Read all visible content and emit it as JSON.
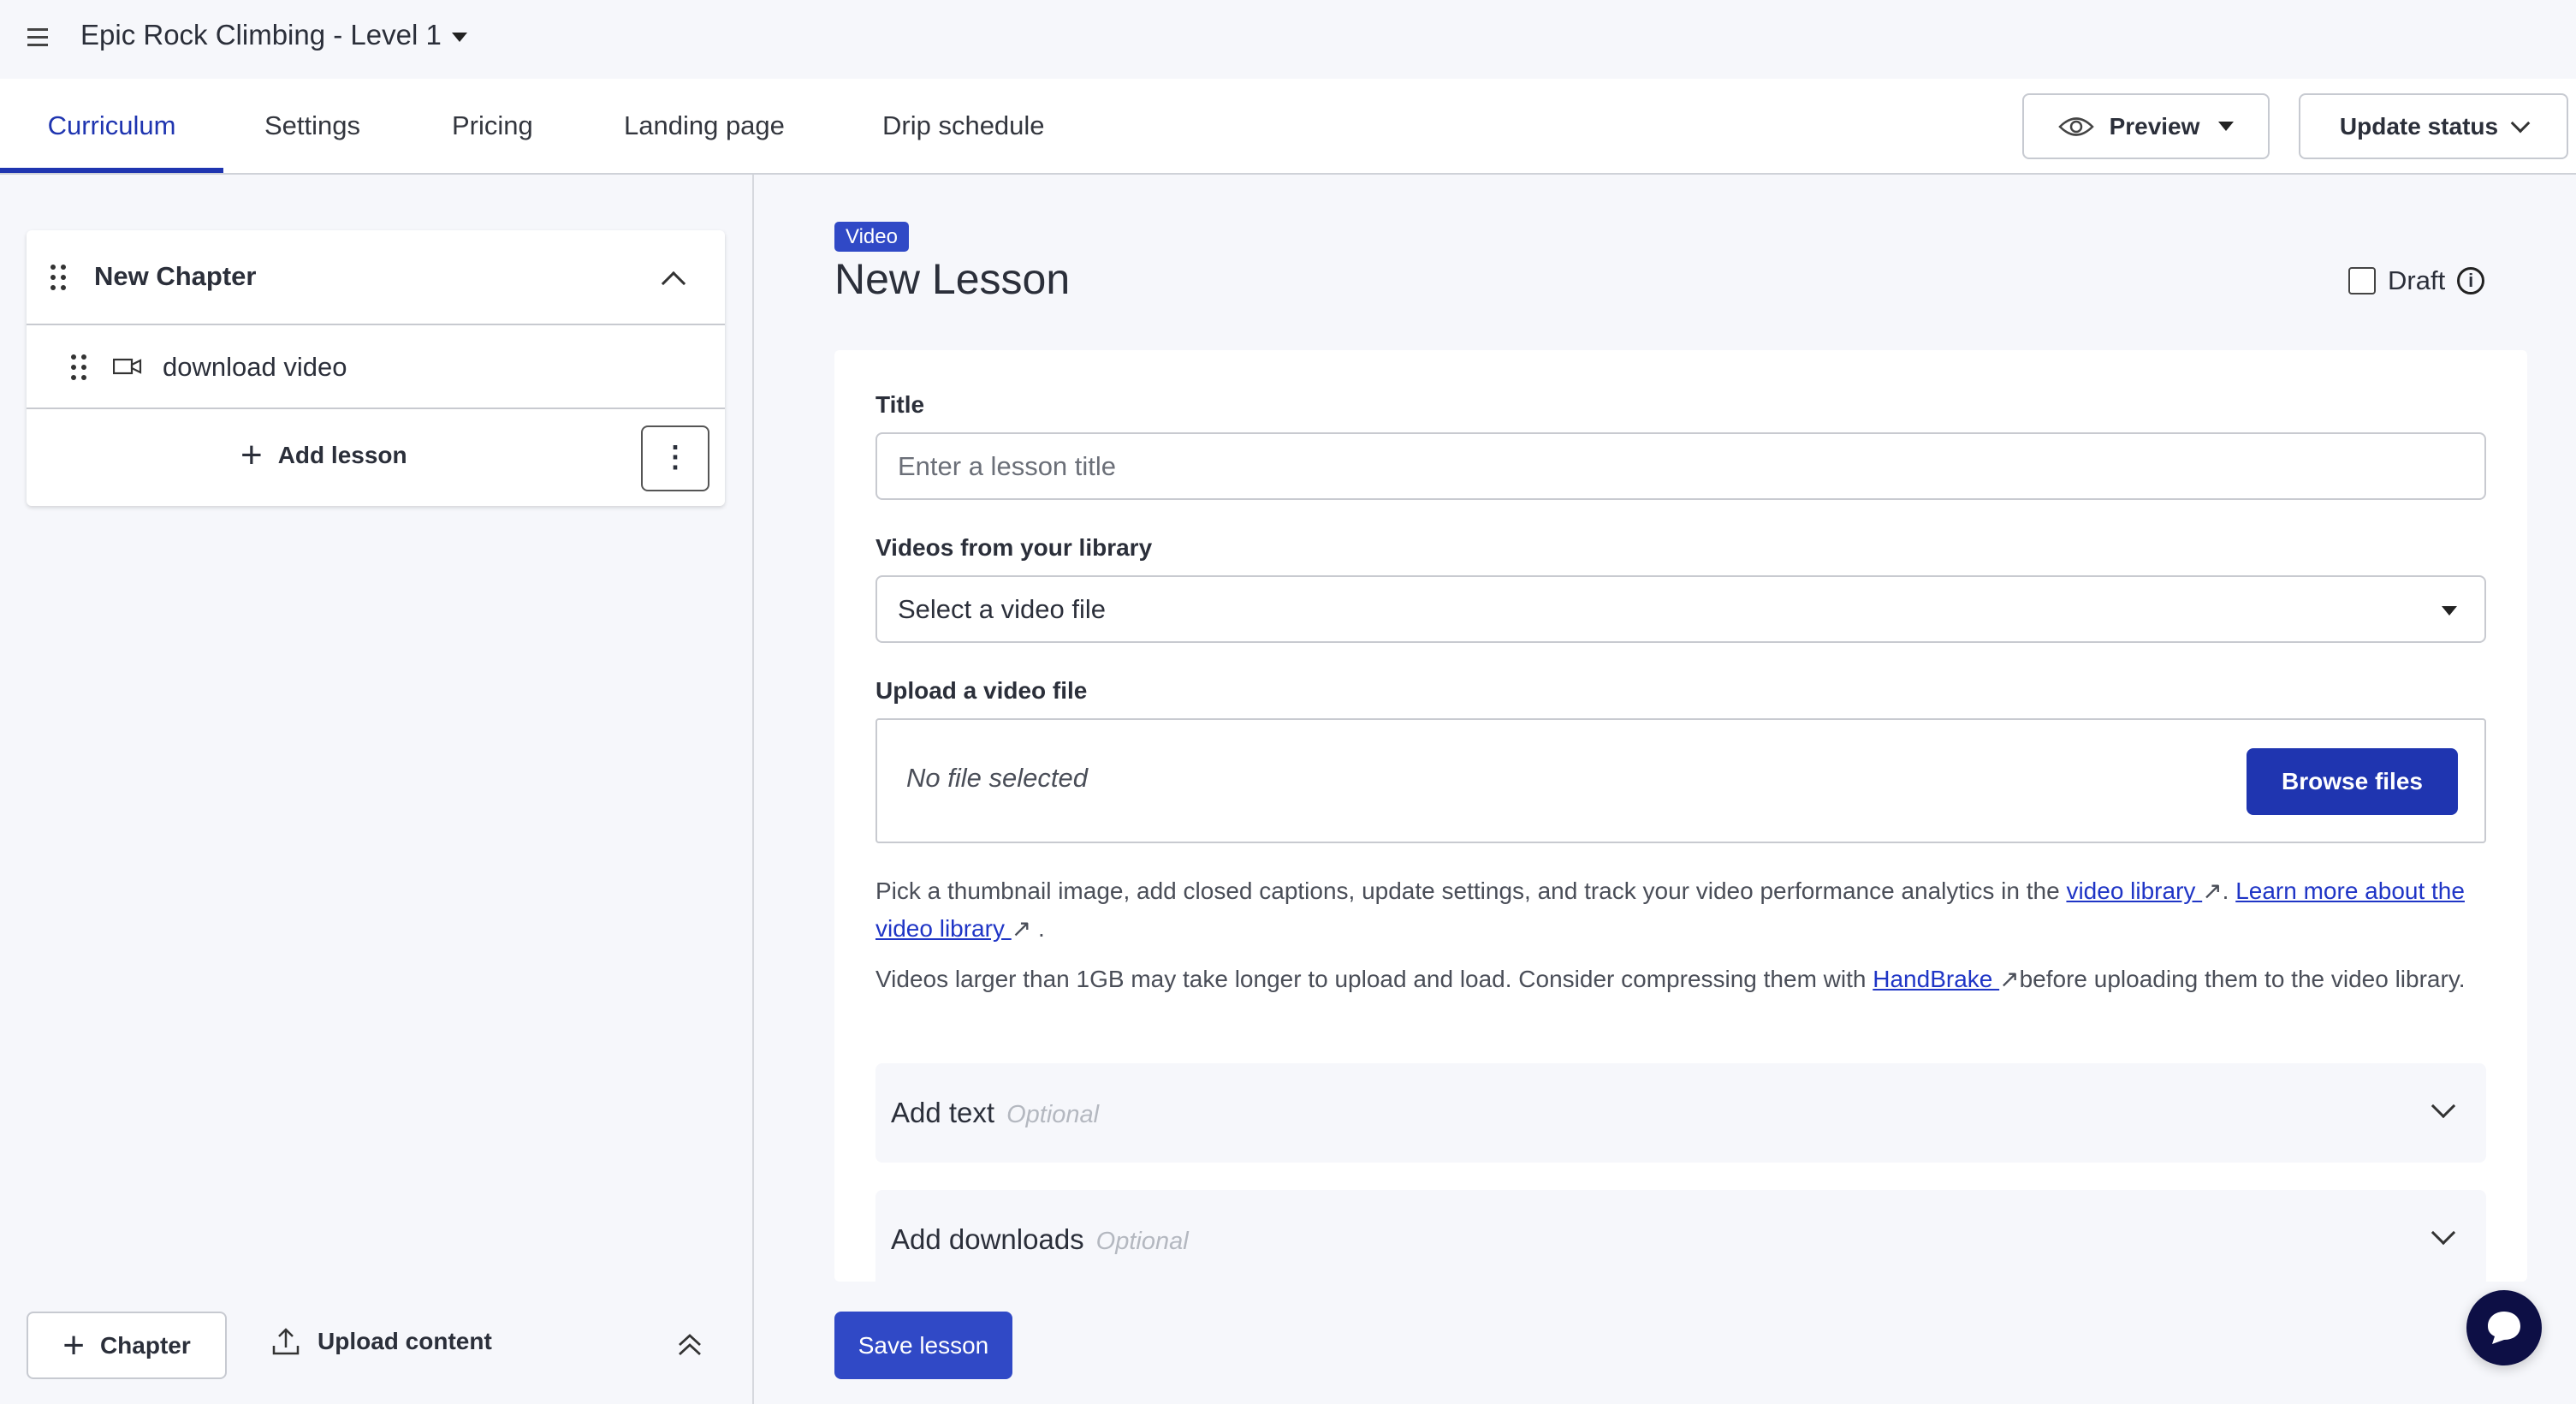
{
  "header": {
    "course_title": "Epic Rock Climbing - Level 1"
  },
  "tabs": [
    {
      "label": "Curriculum",
      "active": true
    },
    {
      "label": "Settings"
    },
    {
      "label": "Pricing"
    },
    {
      "label": "Landing page"
    },
    {
      "label": "Drip schedule"
    }
  ],
  "toolbar": {
    "preview_label": "Preview",
    "update_status_label": "Update status"
  },
  "sidebar": {
    "chapter_title": "New Chapter",
    "lessons": [
      {
        "title": "download video",
        "icon": "video-camera-icon"
      }
    ],
    "add_lesson_label": "Add lesson",
    "add_chapter_label": "Chapter",
    "upload_content_label": "Upload content"
  },
  "lesson": {
    "type_badge": "Video",
    "title": "New Lesson",
    "draft_label": "Draft",
    "draft_checked": false
  },
  "form": {
    "title_label": "Title",
    "title_placeholder": "Enter a lesson title",
    "library_label": "Videos from your library",
    "library_selected": "Select a video file",
    "upload_label": "Upload a video file",
    "no_file_text": "No file selected",
    "browse_label": "Browse files",
    "help1_prefix": "Pick a thumbnail image, add closed captions, update settings, and track your video performance analytics in the ",
    "help1_link1": "video library ",
    "help1_sep": ". ",
    "help1_link2": "Learn more about the video library ",
    "help1_end": ".",
    "help2_prefix": "Videos larger than 1GB may take longer to upload and load. Consider compressing them with ",
    "help2_link": "HandBrake ",
    "help2_suffix": "before uploading them to the video library.",
    "add_text_label": "Add text",
    "add_downloads_label": "Add downloads",
    "optional_label": "Optional"
  },
  "footer": {
    "save_label": "Save lesson"
  },
  "colors": {
    "primary": "#1f35b0",
    "badge": "#3049c6",
    "chat": "#0d0f45"
  }
}
